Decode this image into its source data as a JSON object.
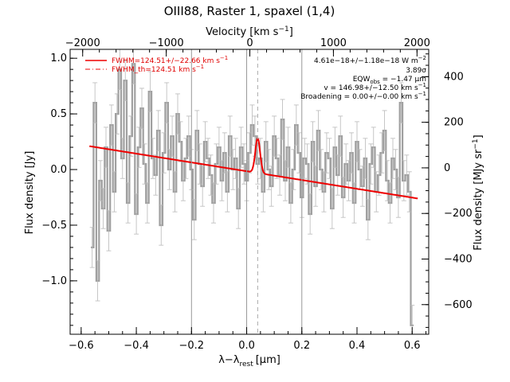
{
  "chart_data": {
    "type": "line",
    "title": "OIII88, Raster 1, spaxel (1,4)",
    "xlabel": "λ−λ",
    "xlabel_sub": "rest",
    "xlabel_unit": "[μm]",
    "ylabel": "Flux density [Jy]",
    "top_xlabel": "Velocity [km s",
    "top_xlabel_sup": "−1",
    "top_xlabel_end": "]",
    "right_ylabel": "Flux density [MJy sr",
    "right_ylabel_sup": "−1",
    "right_ylabel_end": "]",
    "xlim": [
      -0.64,
      0.66
    ],
    "ylim": [
      -1.48,
      1.08
    ],
    "top_xlim": [
      -2150,
      2140
    ],
    "right_ylim": [
      -730,
      520
    ],
    "xticks": [
      -0.6,
      -0.4,
      -0.2,
      0.0,
      0.2,
      0.4,
      0.6
    ],
    "xtick_labels": [
      "−0.6",
      "−0.4",
      "−0.2",
      "0.0",
      "0.2",
      "0.4",
      "0.6"
    ],
    "yticks": [
      -1.0,
      -0.5,
      0.0,
      0.5,
      1.0
    ],
    "ytick_labels": [
      "−1.0",
      "−0.5",
      "0.0",
      "0.5",
      "1.0"
    ],
    "top_xticks": [
      -2000,
      -1000,
      0,
      1000,
      2000
    ],
    "top_xtick_labels": [
      "−2000",
      "−1000",
      "0",
      "1000",
      "2000"
    ],
    "right_yticks": [
      -600,
      -400,
      -200,
      0,
      200,
      400
    ],
    "right_ytick_labels": [
      "−600",
      "−400",
      "−200",
      "0",
      "200",
      "400"
    ],
    "vertical_lines": [
      -0.2,
      0.0,
      0.2
    ],
    "vertical_dashed": [
      0.04
    ],
    "colors": {
      "data": "#a0a0a0",
      "fit": "#ee0000",
      "ref_lines": "#999999"
    },
    "series": [
      {
        "kind": "data-step",
        "x": [
          -0.56,
          -0.55,
          -0.54,
          -0.53,
          -0.52,
          -0.51,
          -0.5,
          -0.49,
          -0.48,
          -0.47,
          -0.46,
          -0.45,
          -0.44,
          -0.43,
          -0.42,
          -0.41,
          -0.4,
          -0.39,
          -0.38,
          -0.37,
          -0.36,
          -0.35,
          -0.34,
          -0.33,
          -0.32,
          -0.31,
          -0.3,
          -0.29,
          -0.28,
          -0.27,
          -0.26,
          -0.25,
          -0.24,
          -0.23,
          -0.22,
          -0.21,
          -0.2,
          -0.19,
          -0.18,
          -0.17,
          -0.16,
          -0.15,
          -0.14,
          -0.13,
          -0.12,
          -0.11,
          -0.1,
          -0.09,
          -0.08,
          -0.07,
          -0.06,
          -0.05,
          -0.04,
          -0.03,
          -0.02,
          -0.01,
          0.0,
          0.01,
          0.02,
          0.03,
          0.04,
          0.05,
          0.06,
          0.07,
          0.08,
          0.09,
          0.1,
          0.11,
          0.12,
          0.13,
          0.14,
          0.15,
          0.16,
          0.17,
          0.18,
          0.19,
          0.2,
          0.21,
          0.22,
          0.23,
          0.24,
          0.25,
          0.26,
          0.27,
          0.28,
          0.29,
          0.3,
          0.31,
          0.32,
          0.33,
          0.34,
          0.35,
          0.36,
          0.37,
          0.38,
          0.39,
          0.4,
          0.41,
          0.42,
          0.43,
          0.44,
          0.45,
          0.46,
          0.47,
          0.48,
          0.49,
          0.5,
          0.51,
          0.52,
          0.53,
          0.54,
          0.55,
          0.56,
          0.57,
          0.58,
          0.59,
          0.6
        ],
        "y": [
          -0.7,
          0.6,
          -1.0,
          -0.1,
          -0.35,
          0.2,
          -0.55,
          0.4,
          -0.2,
          0.5,
          0.9,
          0.1,
          0.8,
          -0.3,
          0.3,
          0.95,
          -0.4,
          0.2,
          0.55,
          0.05,
          -0.3,
          0.7,
          0.1,
          -0.05,
          0.35,
          -0.5,
          0.15,
          0.6,
          0.0,
          0.3,
          -0.2,
          0.5,
          0.25,
          -0.1,
          0.1,
          0.3,
          0.0,
          -0.45,
          0.35,
          0.05,
          -0.15,
          0.25,
          0.1,
          -0.05,
          -0.3,
          0.05,
          0.2,
          -0.1,
          0.15,
          -0.2,
          0.3,
          0.0,
          0.1,
          -0.35,
          0.2,
          0.05,
          -0.1,
          0.15,
          0.4,
          0.3,
          0.05,
          0.1,
          -0.2,
          0.25,
          0.0,
          -0.15,
          0.3,
          0.1,
          -0.05,
          0.45,
          -0.1,
          0.2,
          -0.3,
          0.0,
          0.4,
          0.15,
          -0.25,
          0.1,
          0.05,
          -0.4,
          0.25,
          -0.15,
          0.35,
          0.0,
          -0.2,
          0.15,
          0.1,
          -0.35,
          0.2,
          -0.05,
          0.3,
          -0.25,
          0.05,
          -0.1,
          0.15,
          -0.3,
          0.25,
          0.0,
          -0.15,
          0.1,
          -0.45,
          0.05,
          0.2,
          -0.2,
          -0.05,
          0.15,
          0.35,
          -0.1,
          -0.3,
          0.1,
          0.0,
          -0.25,
          0.6,
          -0.1,
          -0.05,
          -0.2,
          -1.4
        ],
        "err": 0.18
      },
      {
        "kind": "fit",
        "continuum_x": [
          -0.57,
          0.62
        ],
        "continuum_y": [
          0.21,
          -0.26
        ],
        "gauss_center": 0.04,
        "gauss_amplitude": 0.31,
        "gauss_sigma": 0.0088
      }
    ],
    "legend": [
      {
        "text": "FWHM=124.51+/−22.66 km s",
        "sup": "−1",
        "style": "solid"
      },
      {
        "text": "FWHM_th=124.51 km s",
        "sup": "−1",
        "style": "dashdot"
      }
    ],
    "annotations": [
      {
        "text": "4.61e−18+/−1.18e−18 W m",
        "sup": "−2"
      },
      {
        "text": "3.89σ"
      },
      {
        "text": "EQW",
        "sub": "obs",
        "tail": " = −1.47 μm"
      },
      {
        "text": "v = 146.98+/−12.50 km s",
        "sup": "−1"
      },
      {
        "text": "Broadening = 0.00+/−0.00 km s",
        "sup": "−1"
      }
    ]
  }
}
